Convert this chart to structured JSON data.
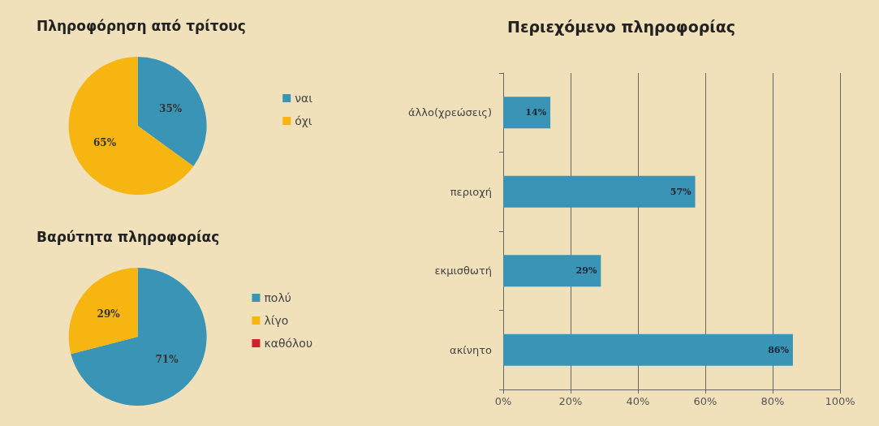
{
  "chart_data": [
    {
      "type": "pie",
      "title": "Πληροφόρηση από τρίτους",
      "categories": [
        "ναι",
        "όχι"
      ],
      "values": [
        35,
        65
      ],
      "colors": [
        "#3a94b5",
        "#f7b512"
      ],
      "value_labels": [
        "35%",
        "65%"
      ],
      "legend": "right"
    },
    {
      "type": "pie",
      "title": "Βαρύτητα πληροφορίας",
      "categories": [
        "πολύ",
        "λίγο",
        "καθόλου"
      ],
      "values": [
        71,
        29,
        0
      ],
      "colors": [
        "#3a94b5",
        "#f7b512",
        "#d0202e"
      ],
      "value_labels": [
        "71%",
        "29%",
        null
      ],
      "legend": "right"
    },
    {
      "type": "bar",
      "orientation": "horizontal",
      "title": "Περιεχόμενο πληροφορίας",
      "categories": [
        "άλλο(χρεώσεις)",
        "περιοχή",
        "εκμισθωτή",
        "ακίνητο"
      ],
      "values": [
        14,
        57,
        29,
        86
      ],
      "color": "#3a94b5",
      "value_labels": [
        "14%",
        "57%",
        "29%",
        "86%"
      ],
      "xlim": [
        0,
        100
      ],
      "xticks": [
        {
          "value": 0,
          "label": "0%"
        },
        {
          "value": 20,
          "label": "20%"
        },
        {
          "value": 40,
          "label": "40%"
        },
        {
          "value": 60,
          "label": "60%"
        },
        {
          "value": 80,
          "label": "80%"
        },
        {
          "value": 100,
          "label": "100%"
        }
      ],
      "grid": "x",
      "legend": false
    }
  ]
}
